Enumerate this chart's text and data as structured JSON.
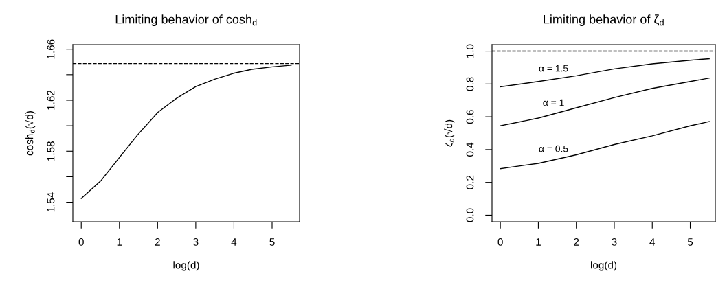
{
  "chart_data": [
    {
      "type": "line",
      "title": "Limiting behavior of cosh$_{d}$",
      "xlabel": "log(d)",
      "ylabel": "cosh$_{d}$(√d)",
      "x": [
        0,
        0.51,
        0.99,
        1.47,
        2.01,
        2.49,
        3.0,
        3.51,
        3.99,
        4.47,
        5.01,
        5.5
      ],
      "series": [
        {
          "color": "#000000",
          "values": [
            1.543,
            1.5567,
            1.5747,
            1.5926,
            1.6106,
            1.6214,
            1.6307,
            1.6366,
            1.6411,
            1.6442,
            1.6462,
            1.6475
          ]
        }
      ],
      "ref_lines": [
        {
          "axis": "y",
          "value": 1.6487,
          "line_style": "dashed",
          "color": "#000000"
        }
      ],
      "xlim": [
        -0.22,
        5.72
      ],
      "ylim": [
        1.5247,
        1.6636
      ],
      "xticks": [
        0,
        1,
        2,
        3,
        4,
        5
      ],
      "yticks": [
        1.54,
        {
          "value": 1.56,
          "label": null
        },
        1.58,
        {
          "value": 1.6,
          "label": null
        },
        1.62,
        {
          "value": 1.64,
          "label": null
        },
        1.66
      ],
      "grid": false,
      "legend": false,
      "marker": "none",
      "line_style": "solid"
    },
    {
      "type": "line",
      "title": "Limiting behavior of ζ$_{d}$",
      "xlabel": "log(d)",
      "ylabel": "ζ$_{d}$(√d)",
      "x": [
        0,
        1,
        2,
        3,
        4,
        5,
        5.5
      ],
      "series": [
        {
          "name": "α = 1.5",
          "color": "#000000",
          "values": [
            0.783,
            0.815,
            0.85,
            0.892,
            0.923,
            0.945,
            0.954
          ]
        },
        {
          "name": "α = 1",
          "color": "#000000",
          "values": [
            0.545,
            0.592,
            0.655,
            0.717,
            0.773,
            0.815,
            0.836
          ]
        },
        {
          "name": "α = 0.5",
          "color": "#000000",
          "values": [
            0.284,
            0.316,
            0.368,
            0.431,
            0.484,
            0.545,
            0.571
          ]
        }
      ],
      "ref_lines": [
        {
          "axis": "y",
          "value": 1.0,
          "line_style": "dashed",
          "color": "#000000"
        }
      ],
      "xlim": [
        -0.22,
        5.66
      ],
      "ylim": [
        -0.04,
        1.04
      ],
      "xticks": [
        0,
        1,
        2,
        3,
        4,
        5
      ],
      "yticks": [
        {
          "value": 0,
          "label": "0.0"
        },
        0.2,
        0.4,
        0.6,
        0.8,
        {
          "value": 1,
          "label": "1.0"
        }
      ],
      "grid": false,
      "legend": false,
      "marker": "none",
      "line_style": "solid"
    }
  ]
}
